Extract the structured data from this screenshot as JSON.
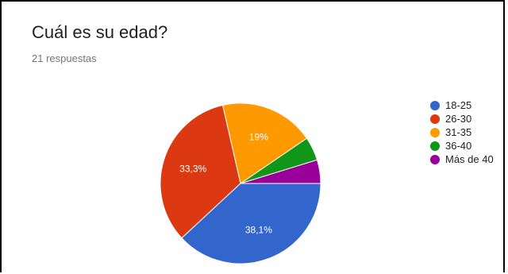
{
  "header": {
    "title": "Cuál es su edad?",
    "subtitle": "21 respuestas"
  },
  "chart_data": {
    "type": "pie",
    "title": "Cuál es su edad?",
    "total_responses": 21,
    "legend_position": "right",
    "slices": [
      {
        "label": "18-25",
        "value": 8,
        "percent_label": "38,1%",
        "color": "#3366cc"
      },
      {
        "label": "26-30",
        "value": 7,
        "percent_label": "33,3%",
        "color": "#dc3912"
      },
      {
        "label": "31-35",
        "value": 4,
        "percent_label": "19%",
        "color": "#ff9900"
      },
      {
        "label": "36-40",
        "value": 1,
        "percent_label": "",
        "color": "#109618"
      },
      {
        "label": "Más de 40",
        "value": 1,
        "percent_label": "",
        "color": "#990099"
      }
    ]
  }
}
